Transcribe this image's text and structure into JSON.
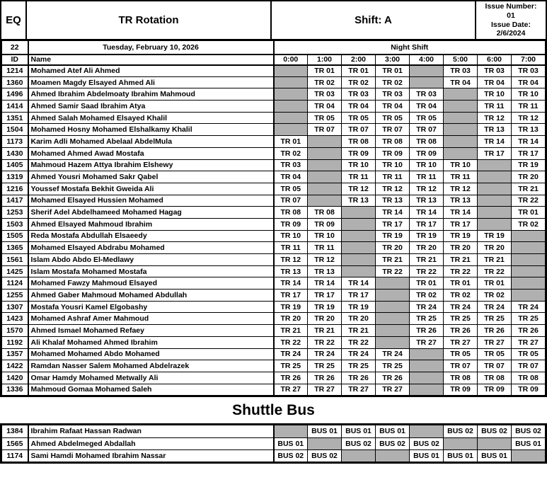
{
  "document": {
    "eq_label": "EQ",
    "title": "TR Rotation",
    "shift_label": "Shift: A",
    "issue_number_label": "Issue Number:",
    "issue_number_value": "01",
    "issue_date_label": "Issue Date:",
    "issue_date_value": "2/6/2024",
    "week_number": "22",
    "date": "Tuesday, February 10, 2026",
    "shift_period_label": "Night Shift",
    "id_column_label": "ID",
    "name_column_label": "Name",
    "time_slots": [
      "0:00",
      "1:00",
      "2:00",
      "3:00",
      "4:00",
      "5:00",
      "6:00",
      "7:00"
    ]
  },
  "colors": {
    "shaded_cell": "#B0B0B0",
    "border": "#000000"
  },
  "rotation_rows": [
    {
      "id": "1214",
      "name": "Mohamed Atef Ali Ahmed",
      "cells": [
        "",
        "TR 01",
        "TR 01",
        "TR 01",
        "",
        "TR 03",
        "TR 03",
        "TR 03"
      ]
    },
    {
      "id": "1360",
      "name": "Moamen Magdy Elsayed Ahmed Ali",
      "cells": [
        "",
        "TR 02",
        "TR 02",
        "TR 02",
        "",
        "TR 04",
        "TR 04",
        "TR 04"
      ]
    },
    {
      "id": "1496",
      "name": "Ahmed Ibrahim Abdelmoaty Ibrahim Mahmoud",
      "cells": [
        "",
        "TR 03",
        "TR 03",
        "TR 03",
        "TR 03",
        "",
        "TR 10",
        "TR 10"
      ]
    },
    {
      "id": "1414",
      "name": "Ahmed Samir Saad Ibrahim Atya",
      "cells": [
        "",
        "TR 04",
        "TR 04",
        "TR 04",
        "TR 04",
        "",
        "TR 11",
        "TR 11"
      ]
    },
    {
      "id": "1351",
      "name": "Ahmed Salah Mohamed Elsayed Khalil",
      "cells": [
        "",
        "TR 05",
        "TR 05",
        "TR 05",
        "TR 05",
        "",
        "TR 12",
        "TR 12"
      ]
    },
    {
      "id": "1504",
      "name": "Mohamed Hosny Mohamed Elshalkamy Khalil",
      "cells": [
        "",
        "TR 07",
        "TR 07",
        "TR 07",
        "TR 07",
        "",
        "TR 13",
        "TR 13"
      ]
    },
    {
      "id": "1173",
      "name": "Karim Adli Mohamed Abelaal AbdelMula",
      "cells": [
        "TR 01",
        "",
        "TR 08",
        "TR 08",
        "TR 08",
        "",
        "TR 14",
        "TR 14"
      ]
    },
    {
      "id": "1430",
      "name": "Mohamed Ahmed Awad Mostafa",
      "cells": [
        "TR 02",
        "",
        "TR 09",
        "TR 09",
        "TR 09",
        "",
        "TR 17",
        "TR 17"
      ]
    },
    {
      "id": "1405",
      "name": "Mahmoud Hazem Attya Ibrahim Elshewy",
      "cells": [
        "TR 03",
        "",
        "TR 10",
        "TR 10",
        "TR 10",
        "TR 10",
        "",
        "TR 19"
      ]
    },
    {
      "id": "1319",
      "name": "Ahmed Yousri Mohamed Sakr Qabel",
      "cells": [
        "TR 04",
        "",
        "TR 11",
        "TR 11",
        "TR 11",
        "TR 11",
        "",
        "TR 20"
      ]
    },
    {
      "id": "1216",
      "name": "Youssef Mostafa Bekhit Gweida Ali",
      "cells": [
        "TR 05",
        "",
        "TR 12",
        "TR 12",
        "TR 12",
        "TR 12",
        "",
        "TR 21"
      ]
    },
    {
      "id": "1417",
      "name": "Mohamed Elsayed Hussien Mohamed",
      "cells": [
        "TR 07",
        "",
        "TR 13",
        "TR 13",
        "TR 13",
        "TR 13",
        "",
        "TR 22"
      ]
    },
    {
      "id": "1253",
      "name": "Sherif Adel Abdelhameed Mohamed Hagag",
      "cells": [
        "TR 08",
        "TR 08",
        "",
        "TR 14",
        "TR 14",
        "TR 14",
        "",
        "TR 01"
      ]
    },
    {
      "id": "1503",
      "name": "Ahmed Elsayed Mahmoud Ibrahim",
      "cells": [
        "TR 09",
        "TR 09",
        "",
        "TR 17",
        "TR 17",
        "TR 17",
        "",
        "TR 02"
      ]
    },
    {
      "id": "1505",
      "name": "Reda Mostafa Abdullah Elsaeedy",
      "cells": [
        "TR 10",
        "TR 10",
        "",
        "TR 19",
        "TR 19",
        "TR 19",
        "TR 19",
        ""
      ]
    },
    {
      "id": "1365",
      "name": "Mohamed Elsayed Abdrabu Mohamed",
      "cells": [
        "TR 11",
        "TR 11",
        "",
        "TR 20",
        "TR 20",
        "TR 20",
        "TR 20",
        ""
      ]
    },
    {
      "id": "1561",
      "name": "Islam Abdo Abdo El-Medlawy",
      "cells": [
        "TR 12",
        "TR 12",
        "",
        "TR 21",
        "TR 21",
        "TR 21",
        "TR 21",
        ""
      ]
    },
    {
      "id": "1425",
      "name": "Islam Mostafa Mohamed Mostafa",
      "cells": [
        "TR 13",
        "TR 13",
        "",
        "TR 22",
        "TR 22",
        "TR 22",
        "TR 22",
        ""
      ]
    },
    {
      "id": "1124",
      "name": "Mohamed Fawzy Mahmoud Elsayed",
      "cells": [
        "TR 14",
        "TR 14",
        "TR 14",
        "",
        "TR 01",
        "TR 01",
        "TR 01",
        ""
      ]
    },
    {
      "id": "1255",
      "name": "Ahmed Gaber Mahmoud Mohamed Abdullah",
      "cells": [
        "TR 17",
        "TR 17",
        "TR 17",
        "",
        "TR 02",
        "TR 02",
        "TR 02",
        ""
      ]
    },
    {
      "id": "1307",
      "name": "Mostafa Yousri Kamel Elgobashy",
      "cells": [
        "TR 19",
        "TR 19",
        "TR 19",
        "",
        "TR 24",
        "TR 24",
        "TR 24",
        "TR 24"
      ]
    },
    {
      "id": "1423",
      "name": "Mohamed Ashraf Amer Mahmoud",
      "cells": [
        "TR 20",
        "TR 20",
        "TR 20",
        "",
        "TR 25",
        "TR 25",
        "TR 25",
        "TR 25"
      ]
    },
    {
      "id": "1570",
      "name": "Ahmed Ismael Mohamed Refaey",
      "cells": [
        "TR 21",
        "TR 21",
        "TR 21",
        "",
        "TR 26",
        "TR 26",
        "TR 26",
        "TR 26"
      ]
    },
    {
      "id": "1192",
      "name": "Ali Khalaf Mohamed Ahmed Ibrahim",
      "cells": [
        "TR 22",
        "TR 22",
        "TR 22",
        "",
        "TR 27",
        "TR 27",
        "TR 27",
        "TR 27"
      ]
    },
    {
      "id": "1357",
      "name": "Mohamed Mohamed Abdo Mohamed",
      "cells": [
        "TR 24",
        "TR 24",
        "TR 24",
        "TR 24",
        "",
        "TR 05",
        "TR 05",
        "TR 05"
      ]
    },
    {
      "id": "1422",
      "name": "Ramdan Nasser Salem Mohamed Abdelrazek",
      "cells": [
        "TR 25",
        "TR 25",
        "TR 25",
        "TR 25",
        "",
        "TR 07",
        "TR 07",
        "TR 07"
      ]
    },
    {
      "id": "1420",
      "name": "Omar Hamdy Mohamed Metwally Ali",
      "cells": [
        "TR 26",
        "TR 26",
        "TR 26",
        "TR 26",
        "",
        "TR 08",
        "TR 08",
        "TR 08"
      ]
    },
    {
      "id": "1336",
      "name": "Mahmoud Gomaa Mohamed Saleh",
      "cells": [
        "TR 27",
        "TR 27",
        "TR 27",
        "TR 27",
        "",
        "TR 09",
        "TR 09",
        "TR 09"
      ]
    }
  ],
  "shuttle_section": {
    "title": "Shuttle Bus",
    "rows": [
      {
        "id": "1384",
        "name": "Ibrahim Rafaat Hassan Radwan",
        "cells": [
          "",
          "BUS 01",
          "BUS 01",
          "BUS 01",
          "",
          "BUS 02",
          "BUS 02",
          "BUS 02"
        ]
      },
      {
        "id": "1565",
        "name": "Ahmed Abdelmeged Abdallah",
        "cells": [
          "BUS 01",
          "",
          "BUS 02",
          "BUS 02",
          "BUS 02",
          "",
          "",
          "BUS 01"
        ]
      },
      {
        "id": "1174",
        "name": "Sami Hamdi Mohamed Ibrahim Nassar",
        "cells": [
          "BUS 02",
          "BUS 02",
          "",
          "",
          "BUS 01",
          "BUS 01",
          "BUS 01",
          ""
        ]
      }
    ]
  }
}
